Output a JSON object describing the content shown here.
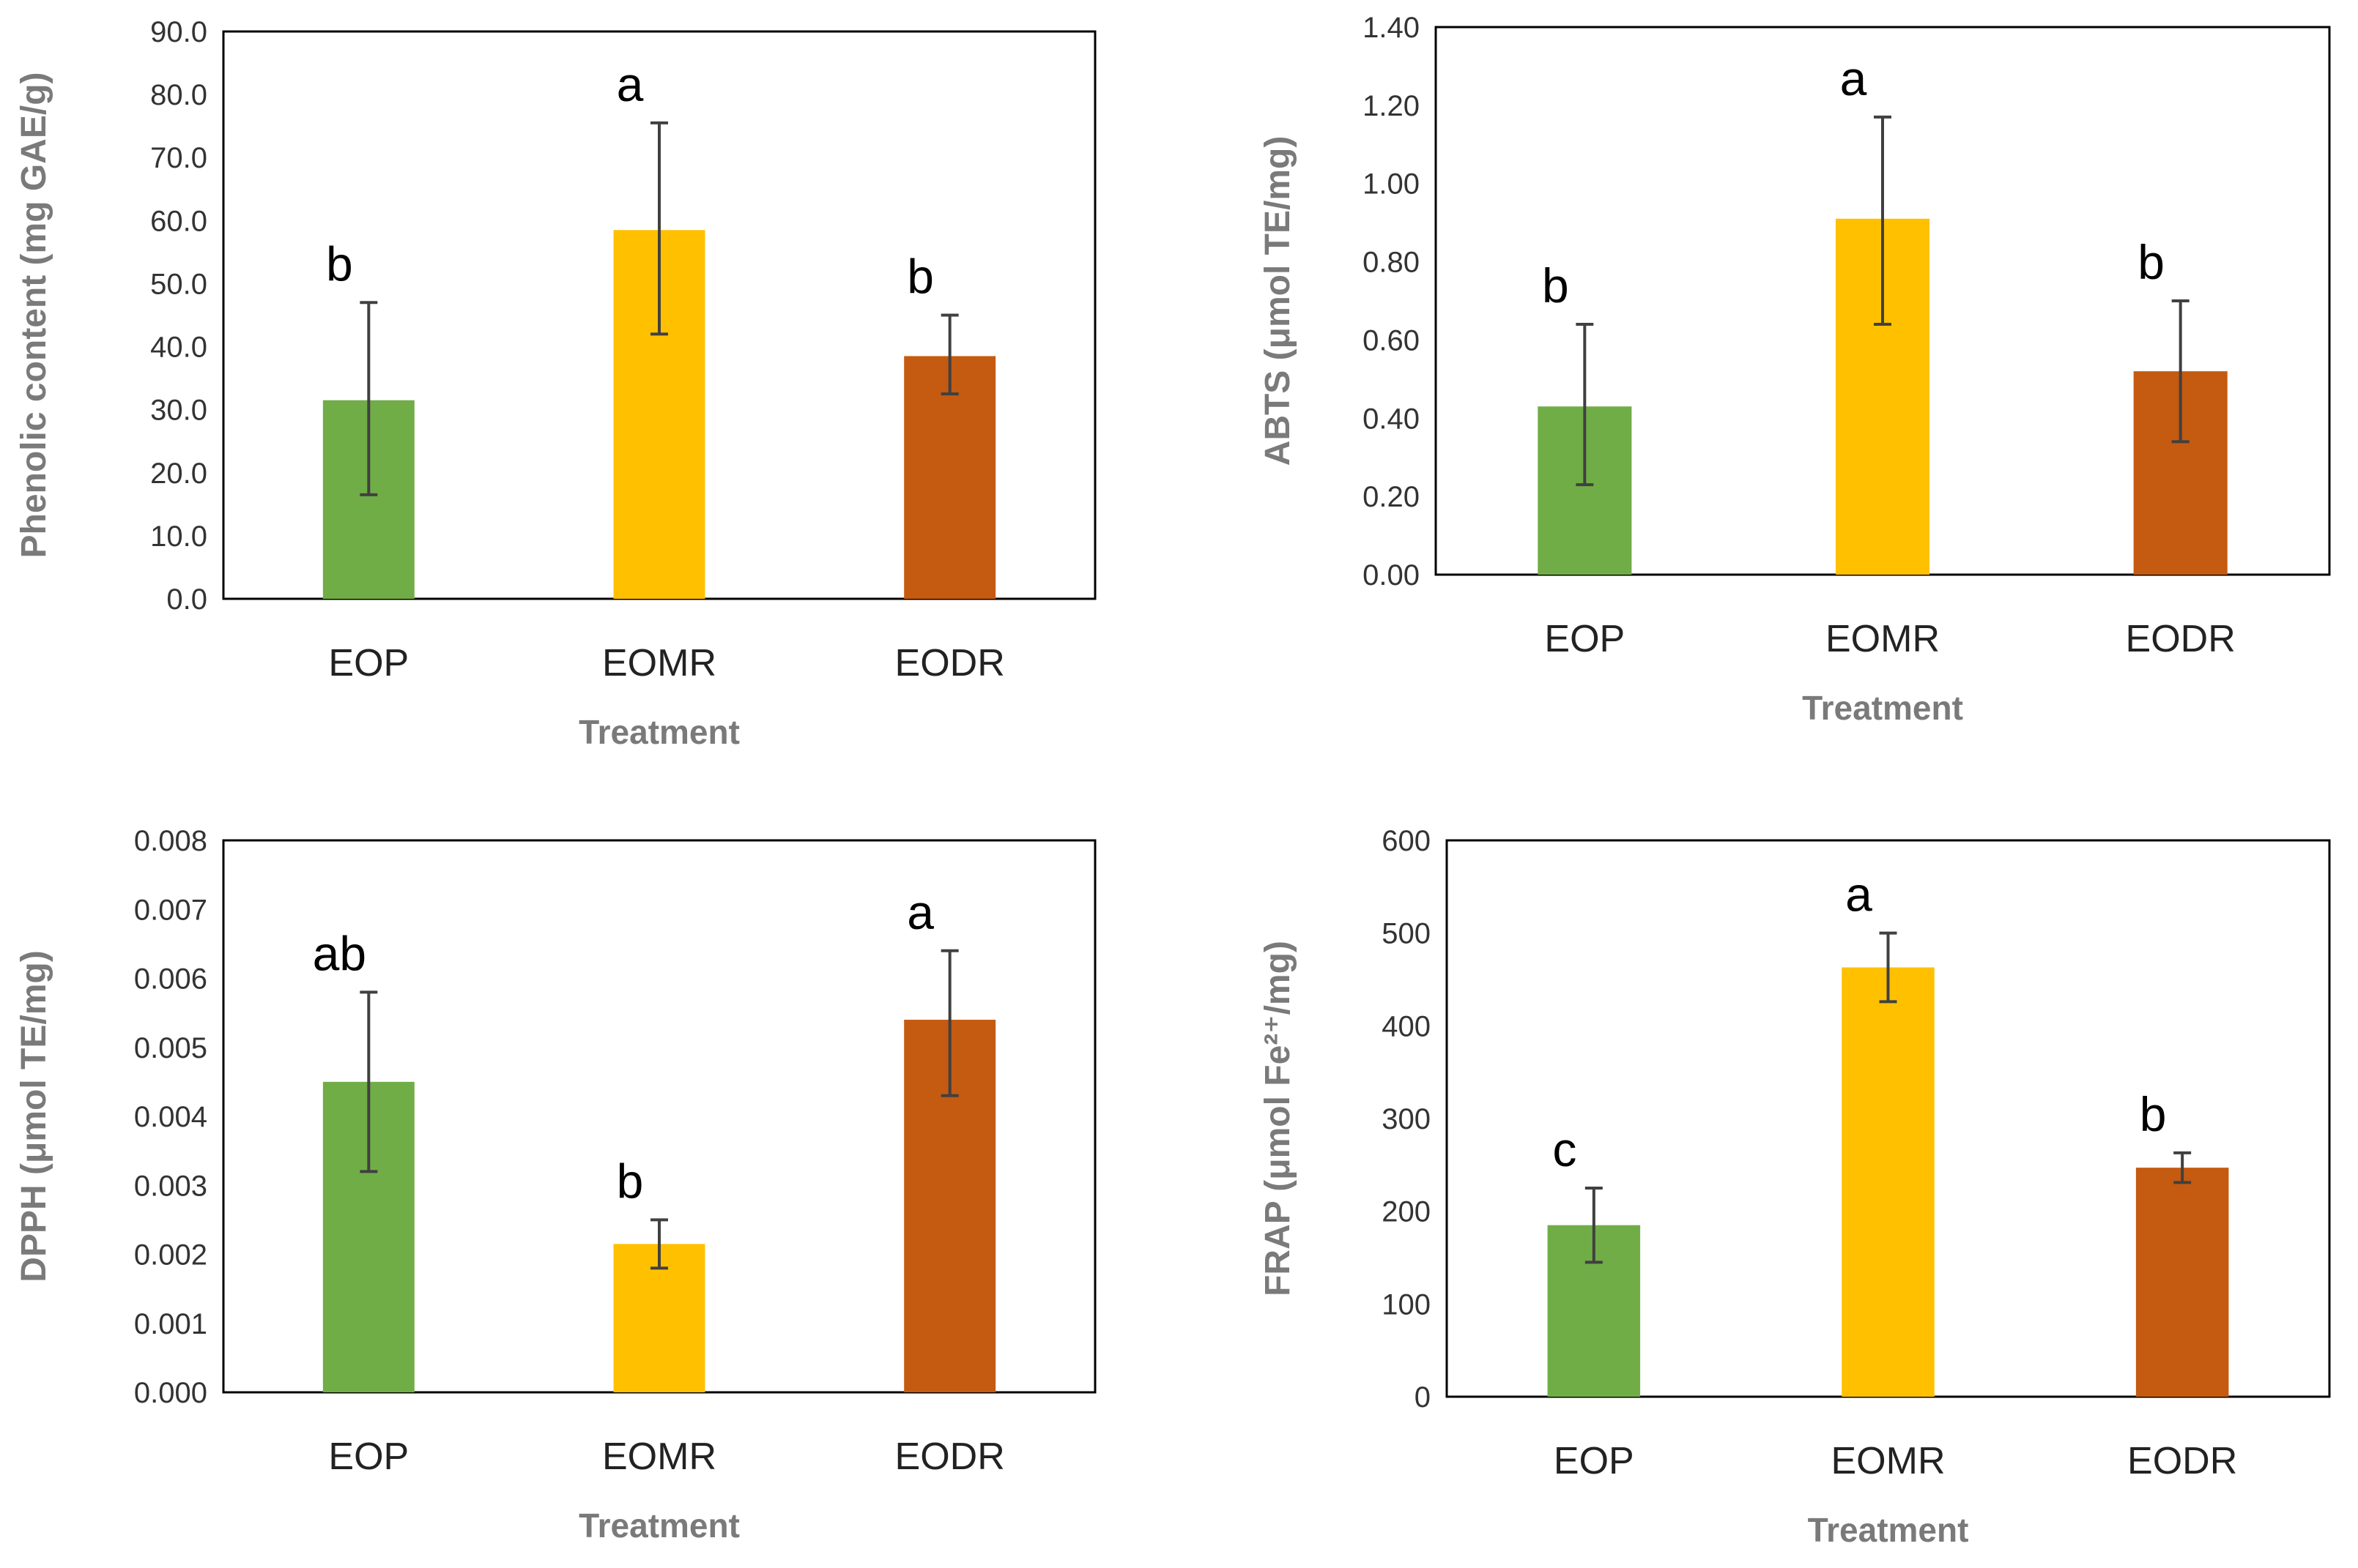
{
  "colors": {
    "EOP": "#70ad47",
    "EOMR": "#ffc000",
    "EODR": "#c55a11",
    "error_bar": "#404040",
    "axis": "#000000"
  },
  "chart_data": [
    {
      "type": "bar",
      "categories": [
        "EOP",
        "EOMR",
        "EODR"
      ],
      "values": [
        31.5,
        58.5,
        38.5
      ],
      "errors_upper": [
        47.0,
        75.5,
        45.0
      ],
      "errors_lower": [
        16.5,
        42.0,
        32.5
      ],
      "significance": [
        "b",
        "a",
        "b"
      ],
      "xlabel": "Treatment",
      "ylabel": "Phenolic content (mg GAE/g)",
      "ylim": [
        0,
        90
      ],
      "yticks": [
        "0.0",
        "10.0",
        "20.0",
        "30.0",
        "40.0",
        "50.0",
        "60.0",
        "70.0",
        "80.0",
        "90.0"
      ],
      "grid": false
    },
    {
      "type": "bar",
      "categories": [
        "EOP",
        "EOMR",
        "EODR"
      ],
      "values": [
        0.43,
        0.91,
        0.52
      ],
      "errors_upper": [
        0.64,
        1.17,
        0.7
      ],
      "errors_lower": [
        0.23,
        0.64,
        0.34
      ],
      "significance": [
        "b",
        "a",
        "b"
      ],
      "xlabel": "Treatment",
      "ylabel": "ABTS (μmol TE/mg)",
      "ylim": [
        0,
        1.4
      ],
      "yticks": [
        "0.00",
        "0.20",
        "0.40",
        "0.60",
        "0.80",
        "1.00",
        "1.20",
        "1.40"
      ],
      "grid": false
    },
    {
      "type": "bar",
      "categories": [
        "EOP",
        "EOMR",
        "EODR"
      ],
      "values": [
        0.0045,
        0.00215,
        0.0054
      ],
      "errors_upper": [
        0.0058,
        0.0025,
        0.0064
      ],
      "errors_lower": [
        0.0032,
        0.0018,
        0.0043
      ],
      "significance": [
        "ab",
        "b",
        "a"
      ],
      "xlabel": "Treatment",
      "ylabel": "DPPH (μmol TE/mg)",
      "ylim": [
        0,
        0.008
      ],
      "yticks": [
        "0.000",
        "0.001",
        "0.002",
        "0.003",
        "0.004",
        "0.005",
        "0.006",
        "0.007",
        "0.008"
      ],
      "grid": false
    },
    {
      "type": "bar",
      "categories": [
        "EOP",
        "EOMR",
        "EODR"
      ],
      "values": [
        185,
        463,
        247
      ],
      "errors_upper": [
        225,
        500,
        263
      ],
      "errors_lower": [
        145,
        426,
        231
      ],
      "significance": [
        "c",
        "a",
        "b"
      ],
      "xlabel": "Treatment",
      "ylabel": "FRAP (μmol Fe²⁺/mg)",
      "ylim": [
        0,
        600
      ],
      "yticks": [
        "0",
        "100",
        "200",
        "300",
        "400",
        "500",
        "600"
      ],
      "grid": false
    }
  ]
}
